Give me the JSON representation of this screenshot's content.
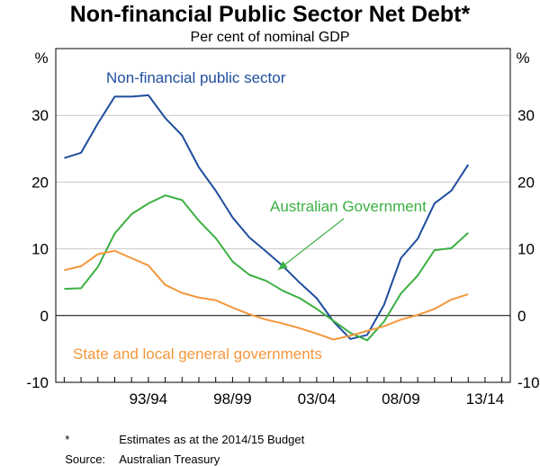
{
  "chart_data": {
    "type": "line",
    "title": "Non-financial Public Sector Net Debt*",
    "subtitle": "Per cent of nominal GDP",
    "ylabel_left": "%",
    "ylabel_right": "%",
    "ylim": [
      -10,
      40
    ],
    "yticks": [
      -10,
      0,
      10,
      20,
      30
    ],
    "ytick_labels": [
      "-10",
      "0",
      "10",
      "20",
      "30"
    ],
    "xlim": [
      1988.5,
      2015.5
    ],
    "x_tick_labels": [
      {
        "label": "93/94",
        "x": 1994
      },
      {
        "label": "98/99",
        "x": 1999
      },
      {
        "label": "03/04",
        "x": 2004
      },
      {
        "label": "08/09",
        "x": 2009
      },
      {
        "label": "13/14",
        "x": 2014
      }
    ],
    "x": [
      1989,
      1990,
      1991,
      1992,
      1993,
      1994,
      1995,
      1996,
      1997,
      1998,
      1999,
      2000,
      2001,
      2002,
      2003,
      2004,
      2005,
      2006,
      2007,
      2008,
      2009,
      2010,
      2011,
      2012,
      2013,
      2014,
      2015
    ],
    "series": [
      {
        "name": "Non-financial public sector",
        "color": "#1f4e9e",
        "values": [
          23.6,
          24.4,
          28.8,
          32.8,
          32.8,
          33.0,
          29.6,
          27.0,
          22.2,
          18.7,
          14.7,
          11.7,
          9.6,
          7.4,
          4.9,
          2.6,
          -0.9,
          -3.5,
          -2.9,
          1.6,
          8.6,
          11.5,
          16.8,
          18.7,
          22.6,
          null,
          null
        ]
      },
      {
        "name": "Australian Government",
        "color": "#3cb043",
        "values": [
          4.0,
          4.1,
          7.3,
          12.3,
          15.2,
          16.8,
          18.0,
          17.3,
          14.2,
          11.6,
          8.1,
          6.1,
          5.2,
          3.7,
          2.6,
          1.0,
          -0.8,
          -2.6,
          -3.7,
          -0.9,
          3.3,
          6.0,
          9.8,
          10.1,
          12.4,
          null,
          null
        ]
      },
      {
        "name": "State and local general governments",
        "color": "#f4973b",
        "values": [
          6.8,
          7.4,
          9.2,
          9.7,
          8.6,
          7.5,
          4.6,
          3.4,
          2.7,
          2.3,
          1.2,
          0.2,
          -0.6,
          -1.2,
          -1.9,
          -2.7,
          -3.6,
          -3.0,
          -2.3,
          -1.6,
          -0.6,
          0.1,
          1.0,
          2.4,
          3.2,
          null,
          null
        ]
      }
    ],
    "annotations": [
      {
        "text": "Non-financial public sector",
        "series": 0
      },
      {
        "text": "Australian Government",
        "series": 1,
        "arrow": true
      },
      {
        "text": "State and local general governments",
        "series": 2
      }
    ],
    "grid": true
  },
  "footnotes": [
    {
      "label": "*",
      "text": "Estimates as at the 2014/15 Budget"
    },
    {
      "label": "Source:",
      "text": "Australian Treasury"
    }
  ]
}
